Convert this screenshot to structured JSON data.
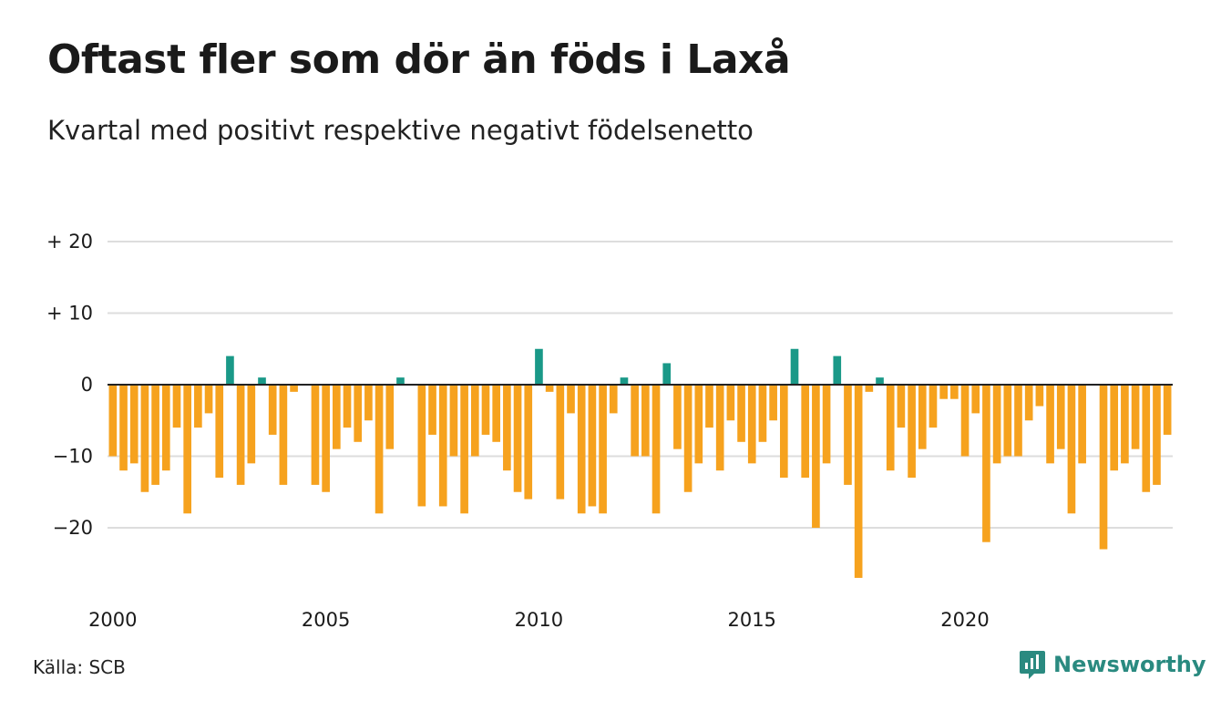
{
  "header": {
    "title": "Oftast fler som dör än föds i Laxå",
    "subtitle": "Kvartal med positivt respektive negativt födelsenetto"
  },
  "footer": {
    "source": "Källa: SCB",
    "brand": "Newsworthy"
  },
  "colors": {
    "positive": "#1a9988",
    "negative": "#f6a21e",
    "grid": "#dddddd",
    "baseline": "#222222",
    "brand": "#2a8a80"
  },
  "chart_data": {
    "type": "bar",
    "title": "Oftast fler som dör än föds i Laxå",
    "subtitle": "Kvartal med positivt respektive negativt födelsenetto",
    "xlabel": "",
    "ylabel": "",
    "ylim": [
      -28,
      20
    ],
    "yticks": [
      {
        "value": 20,
        "label": "+ 20"
      },
      {
        "value": 10,
        "label": "+ 10"
      },
      {
        "value": 0,
        "label": "0"
      },
      {
        "value": -10,
        "label": "−10"
      },
      {
        "value": -20,
        "label": "−20"
      }
    ],
    "xticks": [
      {
        "index": 0,
        "label": "2000"
      },
      {
        "index": 20,
        "label": "2005"
      },
      {
        "index": 40,
        "label": "2010"
      },
      {
        "index": 60,
        "label": "2015"
      },
      {
        "index": 80,
        "label": "2020"
      }
    ],
    "grid": true,
    "start_year": 2000,
    "values": [
      -10,
      -12,
      -11,
      -15,
      -14,
      -12,
      -6,
      -18,
      -6,
      -4,
      -13,
      4,
      -14,
      -11,
      1,
      -7,
      -14,
      -1,
      0,
      -14,
      -15,
      -9,
      -6,
      -8,
      -5,
      -18,
      -9,
      1,
      0,
      -17,
      -7,
      -17,
      -10,
      -18,
      -10,
      -7,
      -8,
      -12,
      -15,
      -16,
      5,
      -1,
      -16,
      -4,
      -18,
      -17,
      -18,
      -4,
      1,
      -10,
      -10,
      -18,
      3,
      -9,
      -15,
      -11,
      -6,
      -12,
      -5,
      -8,
      -11,
      -8,
      -5,
      -13,
      5,
      -13,
      -20,
      -11,
      4,
      -14,
      -27,
      -1,
      1,
      -12,
      -6,
      -13,
      -9,
      -6,
      -2,
      -2,
      -10,
      -4,
      -22,
      -11,
      -10,
      -10,
      -5,
      -3,
      -11,
      -9,
      -18,
      -11,
      0,
      -23,
      -12,
      -11,
      -9,
      -15,
      -14,
      -7
    ]
  }
}
